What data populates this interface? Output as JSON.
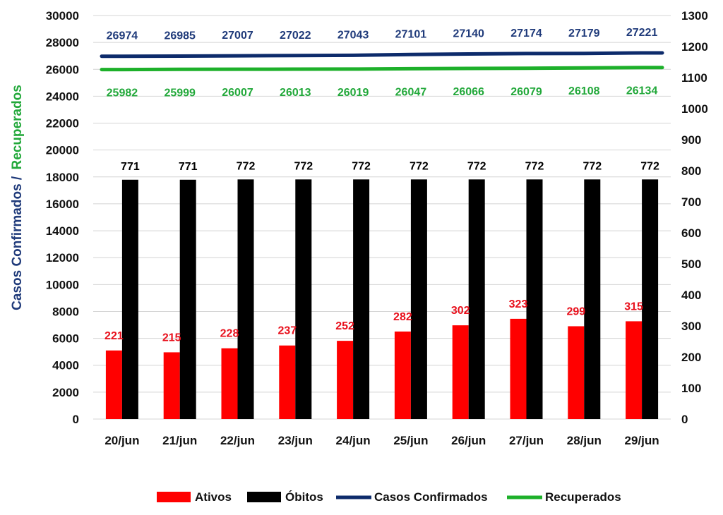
{
  "chart_data": {
    "type": "bar",
    "categories": [
      "20/jun",
      "21/jun",
      "22/jun",
      "23/jun",
      "24/jun",
      "25/jun",
      "26/jun",
      "27/jun",
      "28/jun",
      "29/jun"
    ],
    "left_axis": {
      "ylim": [
        0,
        30000
      ],
      "ticks": [
        "0",
        "2000",
        "4000",
        "6000",
        "8000",
        "10000",
        "12000",
        "14000",
        "16000",
        "18000",
        "20000",
        "22000",
        "24000",
        "26000",
        "28000",
        "30000"
      ],
      "title_part1": "Casos Confirmados /",
      "title_part2": "Recuperados"
    },
    "right_axis": {
      "ylim": [
        0,
        1300
      ],
      "ticks": [
        "0",
        "100",
        "200",
        "300",
        "400",
        "500",
        "600",
        "700",
        "800",
        "900",
        "1000",
        "1100",
        "1200",
        "1300"
      ]
    },
    "grid": true,
    "legend_position": "bottom",
    "series": [
      {
        "name": "Ativos",
        "kind": "bar",
        "axis": "right",
        "color": "#ff0000",
        "label_color": "#e8101c",
        "values": [
          221,
          215,
          228,
          237,
          252,
          282,
          302,
          323,
          299,
          315
        ]
      },
      {
        "name": "Óbitos",
        "kind": "bar",
        "axis": "right",
        "color": "#000000",
        "label_color": "#000000",
        "values": [
          771,
          771,
          772,
          772,
          772,
          772,
          772,
          772,
          772,
          772
        ]
      },
      {
        "name": "Casos Confirmados",
        "kind": "line",
        "axis": "left",
        "color": "#0d2b6b",
        "label_color": "#1f3a7a",
        "values": [
          26974,
          26985,
          27007,
          27022,
          27043,
          27101,
          27140,
          27174,
          27179,
          27221
        ]
      },
      {
        "name": "Recuperados",
        "kind": "line",
        "axis": "left",
        "color": "#1db02a",
        "label_color": "#22a83a",
        "values": [
          25982,
          25999,
          26007,
          26013,
          26019,
          26047,
          26066,
          26079,
          26108,
          26134
        ]
      }
    ]
  }
}
